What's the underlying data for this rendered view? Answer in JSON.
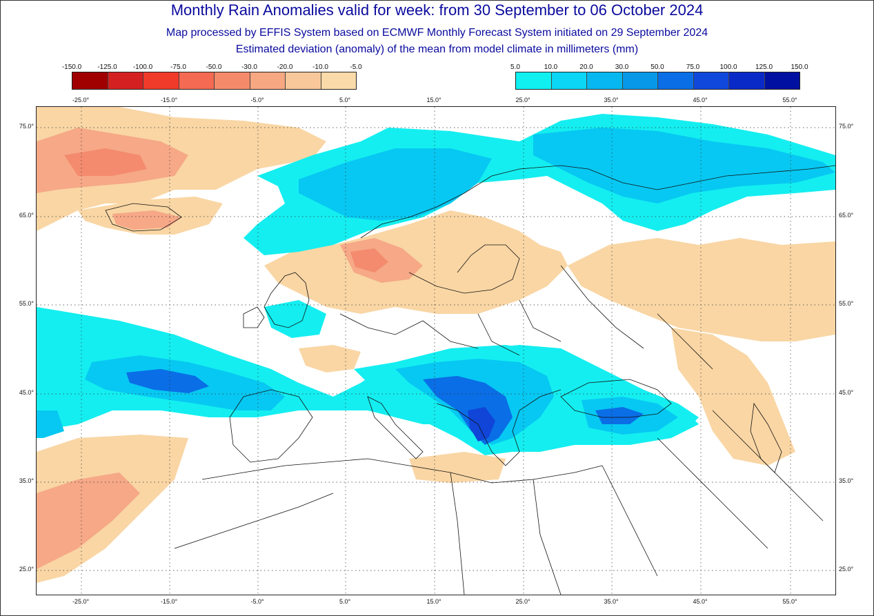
{
  "header": {
    "title": "Monthly Rain Anomalies valid for week: from 30 September to 06 October 2024",
    "subtitle1": "Map processed by EFFIS System based on ECMWF Monthly Forecast System initiated on 29 September 2024",
    "subtitle2": "Estimated deviation (anomaly) of the mean from model climate in millimeters (mm)"
  },
  "legend_negative": {
    "labels": [
      "-150.0",
      "-125.0",
      "-100.0",
      "-75.0",
      "-50.0",
      "-30.0",
      "-20.0",
      "-10.0",
      "-5.0"
    ],
    "colors": [
      "#a00000",
      "#d42020",
      "#f03a2a",
      "#f46a52",
      "#f58a6a",
      "#f7a882",
      "#f8c89a",
      "#fadaa8"
    ]
  },
  "legend_positive": {
    "labels": [
      "5.0",
      "10.0",
      "20.0",
      "30.0",
      "50.0",
      "75.0",
      "100.0",
      "125.0",
      "150.0"
    ],
    "colors": [
      "#10f0f0",
      "#0bd6f5",
      "#07b8f0",
      "#0799e8",
      "#0a6ee6",
      "#1048dc",
      "#0a2ac8",
      "#0010a0"
    ]
  },
  "axes": {
    "top_lon": [
      "-25.0°",
      "-15.0°",
      "-5.0°",
      "5.0°",
      "15.0°",
      "25.0°",
      "35.0°",
      "45.0°",
      "55.0°"
    ],
    "bottom_lon": [
      "-25.0°",
      "-15.0°",
      "-5.0°",
      "5.0°",
      "15.0°",
      "25.0°",
      "35.0°",
      "45.0°",
      "55.0°"
    ],
    "left_lat": [
      "75.0°",
      "65.0°",
      "55.0°",
      "45.0°",
      "35.0°",
      "25.0°"
    ],
    "right_lat": [
      "75.0°",
      "65.0°",
      "55.0°",
      "45.0°",
      "35.0°",
      "25.0°"
    ]
  },
  "map": {
    "grid": true,
    "colors": {
      "dry": "#f9d6a4",
      "dry2": "#f6a887",
      "dry3": "#f48b6e",
      "wet1": "#14eef0",
      "wet2": "#07c8f2",
      "wet3": "#0aa0ea",
      "wet4": "#0a6ee6",
      "wet5": "#1045d8",
      "coast": "#111111"
    }
  }
}
